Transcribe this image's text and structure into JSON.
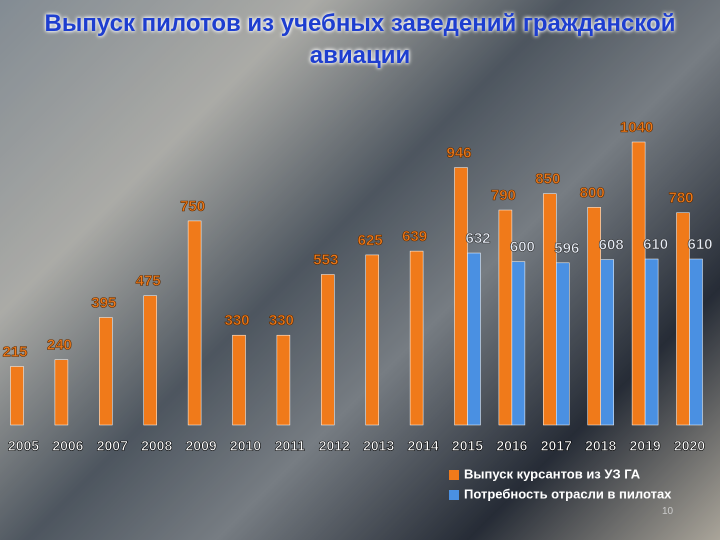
{
  "chart_data": {
    "type": "bar",
    "title": "Выпуск пилотов из учебных заведений гражданской авиации",
    "categories": [
      "2005",
      "2006",
      "2007",
      "2008",
      "2009",
      "2010",
      "2011",
      "2012",
      "2013",
      "2014",
      "2015",
      "2016",
      "2017",
      "2018",
      "2019",
      "2020"
    ],
    "series": [
      {
        "name": "Выпуск курсантов из УЗ ГА",
        "color": "#f07a1a",
        "values": [
          215,
          240,
          395,
          475,
          750,
          330,
          330,
          553,
          625,
          639,
          946,
          790,
          850,
          800,
          1040,
          780
        ]
      },
      {
        "name": "Потребность отрасли в пилотах",
        "color": "#4a90e2",
        "values": [
          null,
          null,
          null,
          null,
          null,
          null,
          null,
          null,
          null,
          null,
          632,
          600,
          596,
          608,
          610,
          610
        ]
      }
    ],
    "legend": "bottom-right"
  },
  "slide_number": "10"
}
